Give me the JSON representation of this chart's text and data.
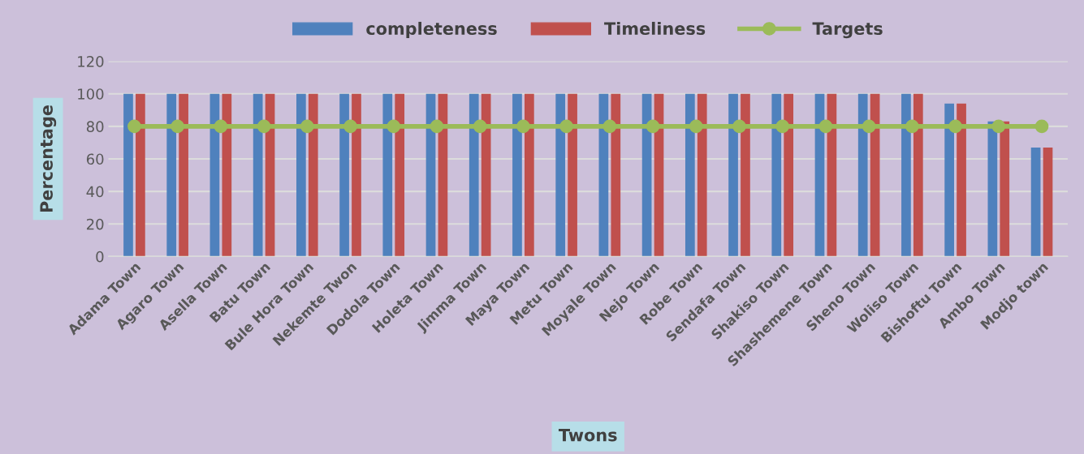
{
  "chart_data": {
    "type": "bar",
    "xlabel": "Twons",
    "ylabel": "Percentage",
    "categories": [
      "Adama Town",
      "Agaro Town",
      "Asella Town",
      "Batu Town",
      "Bule Hora Town",
      "Nekemte Twon",
      "Dodola Town",
      "Holeta Town",
      "Jimma Town",
      "Maya Town",
      "Metu Town",
      "Moyale Town",
      "Nejo Town",
      "Robe Town",
      "Sendafa Town",
      "Shakiso Town",
      "Shashemene Town",
      "Sheno Town",
      "Woliso Town",
      "Bishoftu Town",
      "Ambo Town",
      "Modjo town"
    ],
    "series": [
      {
        "name": "completeness",
        "color": "#4f81bd",
        "values": [
          100,
          100,
          100,
          100,
          100,
          100,
          100,
          100,
          100,
          100,
          100,
          100,
          100,
          100,
          100,
          100,
          100,
          100,
          100,
          94,
          83,
          67
        ]
      },
      {
        "name": "Timeliness",
        "color": "#c0504d",
        "values": [
          100,
          100,
          100,
          100,
          100,
          100,
          100,
          100,
          100,
          100,
          100,
          100,
          100,
          100,
          100,
          100,
          100,
          100,
          100,
          94,
          83,
          67
        ]
      },
      {
        "name": "Targets",
        "type": "line",
        "color": "#9bbb59",
        "marker": "circle",
        "values": [
          80,
          80,
          80,
          80,
          80,
          80,
          80,
          80,
          80,
          80,
          80,
          80,
          80,
          80,
          80,
          80,
          80,
          80,
          80,
          80,
          80,
          80
        ]
      }
    ],
    "ylim": [
      0,
      120
    ],
    "yticks": [
      0,
      20,
      40,
      60,
      80,
      100,
      120
    ],
    "grid": "y",
    "legend": "top"
  }
}
